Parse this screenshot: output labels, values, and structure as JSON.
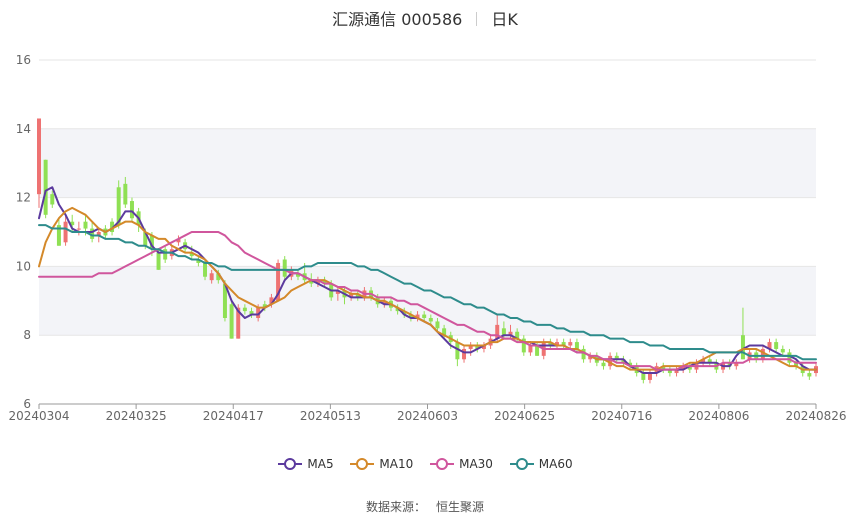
{
  "header": {
    "stock_name": "汇源通信 000586",
    "period": "日K"
  },
  "source": {
    "label": "数据来源：",
    "provider": "恒生聚源"
  },
  "legend": [
    {
      "name": "MA5",
      "color": "#5b3a9e"
    },
    {
      "name": "MA10",
      "color": "#d4892a"
    },
    {
      "name": "MA30",
      "color": "#d0569d"
    },
    {
      "name": "MA60",
      "color": "#2e8c8c"
    }
  ],
  "colors": {
    "up": "#ee7272",
    "down": "#8fe054",
    "grid": "#e6e6e6",
    "band": "#f3f4f8"
  },
  "chart_data": {
    "type": "candlestick",
    "title": "汇源通信 000586 日K",
    "x_tick_labels": [
      "20240304",
      "20240325",
      "20240417",
      "20240513",
      "20240603",
      "20240625",
      "20240716",
      "20240806",
      "20240826"
    ],
    "y_ticks": [
      6,
      8,
      10,
      12,
      14,
      16
    ],
    "ylim": [
      6,
      16
    ],
    "grid": true,
    "candles": [
      [
        12.1,
        14.3,
        14.3,
        11.7
      ],
      [
        13.1,
        11.5,
        13.1,
        11.4
      ],
      [
        12.1,
        11.8,
        12.2,
        11.7
      ],
      [
        11.2,
        10.6,
        11.4,
        10.6
      ],
      [
        10.7,
        11.3,
        11.5,
        10.6
      ],
      [
        11.3,
        11.2,
        11.5,
        11.0
      ],
      [
        11.1,
        11.1,
        11.3,
        10.9
      ],
      [
        11.3,
        11.1,
        11.5,
        10.9
      ],
      [
        11.1,
        10.8,
        11.3,
        10.7
      ],
      [
        10.9,
        11.0,
        11.1,
        10.7
      ],
      [
        11.1,
        10.9,
        11.2,
        10.8
      ],
      [
        11.3,
        11.0,
        11.4,
        10.9
      ],
      [
        12.3,
        11.2,
        12.5,
        11.1
      ],
      [
        12.4,
        11.8,
        12.6,
        11.7
      ],
      [
        11.9,
        11.4,
        12.0,
        11.3
      ],
      [
        11.6,
        11.2,
        11.7,
        11.0
      ],
      [
        11.0,
        10.6,
        11.1,
        10.5
      ],
      [
        10.9,
        10.5,
        11.0,
        10.3
      ],
      [
        10.4,
        9.9,
        10.5,
        9.9
      ],
      [
        10.5,
        10.2,
        10.6,
        10.1
      ],
      [
        10.3,
        10.5,
        10.6,
        10.2
      ],
      [
        10.7,
        10.8,
        10.9,
        10.6
      ],
      [
        10.7,
        10.5,
        10.8,
        10.4
      ],
      [
        10.4,
        10.3,
        10.6,
        10.2
      ],
      [
        10.2,
        10.1,
        10.3,
        10.0
      ],
      [
        10.1,
        9.7,
        10.2,
        9.6
      ],
      [
        9.6,
        9.8,
        9.9,
        9.5
      ],
      [
        9.8,
        9.6,
        9.9,
        9.5
      ],
      [
        9.5,
        8.5,
        9.6,
        8.4
      ],
      [
        8.9,
        7.9,
        9.0,
        7.9
      ],
      [
        7.9,
        8.8,
        8.9,
        7.9
      ],
      [
        8.8,
        8.7,
        8.9,
        8.6
      ],
      [
        8.7,
        8.6,
        8.8,
        8.5
      ],
      [
        8.5,
        8.8,
        8.9,
        8.4
      ],
      [
        8.9,
        8.8,
        9.0,
        8.7
      ],
      [
        8.9,
        9.1,
        9.2,
        8.8
      ],
      [
        9.0,
        10.1,
        10.2,
        9.0
      ],
      [
        10.2,
        9.7,
        10.3,
        9.6
      ],
      [
        9.7,
        9.9,
        10.0,
        9.6
      ],
      [
        9.8,
        9.7,
        9.9,
        9.6
      ],
      [
        9.8,
        9.6,
        10.1,
        9.5
      ],
      [
        9.6,
        9.5,
        9.8,
        9.4
      ],
      [
        9.5,
        9.6,
        9.7,
        9.4
      ],
      [
        9.6,
        9.5,
        9.7,
        9.4
      ],
      [
        9.5,
        9.1,
        9.6,
        9.0
      ],
      [
        9.2,
        9.3,
        9.4,
        9.0
      ],
      [
        9.3,
        9.1,
        9.4,
        8.9
      ],
      [
        9.1,
        9.2,
        9.3,
        9.0
      ],
      [
        9.2,
        9.1,
        9.3,
        9.0
      ],
      [
        9.1,
        9.3,
        9.4,
        9.0
      ],
      [
        9.3,
        9.1,
        9.4,
        9.0
      ],
      [
        9.1,
        8.9,
        9.2,
        8.8
      ],
      [
        8.9,
        9.0,
        9.1,
        8.8
      ],
      [
        9.0,
        8.8,
        9.1,
        8.7
      ],
      [
        8.8,
        8.7,
        8.9,
        8.6
      ],
      [
        8.7,
        8.6,
        8.8,
        8.5
      ],
      [
        8.6,
        8.5,
        8.7,
        8.4
      ],
      [
        8.5,
        8.6,
        8.7,
        8.4
      ],
      [
        8.6,
        8.5,
        8.7,
        8.4
      ],
      [
        8.5,
        8.4,
        8.6,
        8.3
      ],
      [
        8.4,
        8.2,
        8.5,
        8.1
      ],
      [
        8.2,
        8.0,
        8.3,
        7.9
      ],
      [
        8.0,
        7.8,
        8.1,
        7.6
      ],
      [
        7.8,
        7.3,
        7.9,
        7.1
      ],
      [
        7.3,
        7.6,
        7.7,
        7.2
      ],
      [
        7.6,
        7.7,
        7.8,
        7.4
      ],
      [
        7.7,
        7.6,
        7.8,
        7.5
      ],
      [
        7.6,
        7.7,
        7.8,
        7.5
      ],
      [
        7.7,
        7.9,
        8.0,
        7.6
      ],
      [
        7.9,
        8.3,
        8.6,
        7.8
      ],
      [
        8.2,
        8.0,
        8.4,
        7.9
      ],
      [
        8.0,
        8.1,
        8.3,
        7.9
      ],
      [
        8.1,
        7.9,
        8.2,
        7.8
      ],
      [
        7.9,
        7.5,
        8.0,
        7.4
      ],
      [
        7.5,
        7.7,
        7.8,
        7.4
      ],
      [
        7.7,
        7.4,
        7.8,
        7.4
      ],
      [
        7.4,
        7.8,
        7.9,
        7.3
      ],
      [
        7.8,
        7.7,
        7.9,
        7.6
      ],
      [
        7.7,
        7.8,
        7.9,
        7.6
      ],
      [
        7.8,
        7.7,
        7.9,
        7.6
      ],
      [
        7.7,
        7.8,
        7.9,
        7.6
      ],
      [
        7.8,
        7.6,
        7.9,
        7.5
      ],
      [
        7.6,
        7.3,
        7.7,
        7.2
      ],
      [
        7.3,
        7.4,
        7.5,
        7.2
      ],
      [
        7.4,
        7.2,
        7.5,
        7.1
      ],
      [
        7.2,
        7.1,
        7.3,
        7.0
      ],
      [
        7.1,
        7.4,
        7.5,
        7.0
      ],
      [
        7.4,
        7.3,
        7.5,
        7.2
      ],
      [
        7.3,
        7.2,
        7.4,
        7.1
      ],
      [
        7.2,
        7.1,
        7.3,
        7.0
      ],
      [
        7.1,
        6.9,
        7.2,
        6.8
      ],
      [
        6.9,
        6.7,
        7.0,
        6.6
      ],
      [
        6.7,
        6.9,
        7.0,
        6.6
      ],
      [
        6.9,
        7.1,
        7.2,
        6.8
      ],
      [
        7.1,
        7.0,
        7.2,
        6.9
      ],
      [
        7.0,
        6.9,
        7.1,
        6.8
      ],
      [
        6.9,
        7.0,
        7.1,
        6.8
      ],
      [
        7.0,
        7.1,
        7.2,
        6.9
      ],
      [
        7.1,
        7.0,
        7.2,
        6.9
      ],
      [
        7.0,
        7.2,
        7.3,
        6.9
      ],
      [
        7.2,
        7.3,
        7.4,
        7.1
      ],
      [
        7.3,
        7.2,
        7.4,
        7.1
      ],
      [
        7.2,
        7.0,
        7.3,
        6.9
      ],
      [
        7.0,
        7.2,
        7.3,
        6.9
      ],
      [
        7.2,
        7.1,
        7.3,
        7.0
      ],
      [
        7.1,
        7.2,
        7.3,
        7.0
      ],
      [
        8.0,
        7.3,
        8.8,
        7.3
      ],
      [
        7.3,
        7.5,
        7.6,
        7.2
      ],
      [
        7.5,
        7.3,
        7.6,
        7.2
      ],
      [
        7.3,
        7.6,
        7.7,
        7.2
      ],
      [
        7.6,
        7.8,
        7.9,
        7.5
      ],
      [
        7.8,
        7.6,
        7.9,
        7.5
      ],
      [
        7.6,
        7.5,
        7.7,
        7.4
      ],
      [
        7.5,
        7.2,
        7.6,
        7.1
      ],
      [
        7.2,
        7.1,
        7.3,
        7.0
      ],
      [
        7.1,
        6.9,
        7.2,
        6.8
      ],
      [
        6.9,
        6.8,
        7.0,
        6.7
      ],
      [
        6.9,
        7.1,
        7.2,
        6.8
      ]
    ],
    "ma5": [
      11.4,
      12.2,
      12.3,
      11.8,
      11.5,
      11.1,
      11.0,
      11.0,
      11.0,
      11.1,
      11.0,
      11.1,
      11.3,
      11.6,
      11.6,
      11.4,
      11.0,
      10.6,
      10.4,
      10.4,
      10.4,
      10.5,
      10.6,
      10.5,
      10.4,
      10.2,
      10.0,
      9.8,
      9.5,
      9.0,
      8.7,
      8.5,
      8.6,
      8.6,
      8.8,
      8.9,
      9.2,
      9.6,
      9.8,
      9.8,
      9.7,
      9.6,
      9.5,
      9.4,
      9.3,
      9.3,
      9.2,
      9.1,
      9.1,
      9.1,
      9.1,
      9.0,
      8.9,
      8.9,
      8.8,
      8.6,
      8.5,
      8.5,
      8.4,
      8.3,
      8.1,
      7.9,
      7.7,
      7.6,
      7.5,
      7.5,
      7.6,
      7.7,
      7.8,
      7.9,
      8.0,
      8.0,
      7.9,
      7.8,
      7.8,
      7.7,
      7.7,
      7.7,
      7.7,
      7.7,
      7.6,
      7.5,
      7.5,
      7.4,
      7.3,
      7.3,
      7.3,
      7.3,
      7.3,
      7.1,
      7.0,
      6.9,
      6.9,
      6.9,
      7.0,
      7.0,
      7.0,
      7.0,
      7.1,
      7.2,
      7.2,
      7.2,
      7.2,
      7.1,
      7.1,
      7.4,
      7.6,
      7.7,
      7.7,
      7.7,
      7.6,
      7.5,
      7.4,
      7.4,
      7.3,
      7.1,
      7.0,
      7.0
    ],
    "ma10": [
      10.0,
      10.7,
      11.1,
      11.4,
      11.6,
      11.7,
      11.6,
      11.5,
      11.3,
      11.1,
      11.0,
      11.1,
      11.2,
      11.3,
      11.3,
      11.2,
      11.0,
      10.9,
      10.8,
      10.8,
      10.6,
      10.5,
      10.4,
      10.4,
      10.3,
      10.2,
      10.0,
      9.8,
      9.5,
      9.3,
      9.1,
      9.0,
      8.9,
      8.8,
      8.8,
      8.9,
      9.0,
      9.1,
      9.3,
      9.4,
      9.5,
      9.6,
      9.6,
      9.6,
      9.5,
      9.4,
      9.3,
      9.2,
      9.2,
      9.1,
      9.1,
      9.0,
      9.0,
      8.9,
      8.8,
      8.7,
      8.6,
      8.5,
      8.4,
      8.3,
      8.1,
      8.0,
      7.9,
      7.8,
      7.7,
      7.7,
      7.7,
      7.7,
      7.8,
      7.8,
      7.9,
      7.9,
      7.9,
      7.8,
      7.8,
      7.8,
      7.8,
      7.8,
      7.7,
      7.7,
      7.6,
      7.6,
      7.5,
      7.4,
      7.3,
      7.3,
      7.2,
      7.1,
      7.1,
      7.0,
      7.0,
      7.0,
      7.0,
      7.0,
      7.1,
      7.1,
      7.1,
      7.1,
      7.2,
      7.2,
      7.3,
      7.4,
      7.5,
      7.5,
      7.5,
      7.5,
      7.6,
      7.6,
      7.6,
      7.5,
      7.4,
      7.3,
      7.2,
      7.1,
      7.1,
      7.0,
      7.0,
      7.0
    ],
    "ma30": [
      9.7,
      9.7,
      9.7,
      9.7,
      9.7,
      9.7,
      9.7,
      9.7,
      9.7,
      9.8,
      9.8,
      9.8,
      9.9,
      10.0,
      10.1,
      10.2,
      10.3,
      10.4,
      10.5,
      10.6,
      10.7,
      10.8,
      10.9,
      11.0,
      11.0,
      11.0,
      11.0,
      11.0,
      10.9,
      10.7,
      10.6,
      10.4,
      10.3,
      10.2,
      10.1,
      10.0,
      9.9,
      9.9,
      9.8,
      9.8,
      9.7,
      9.6,
      9.6,
      9.5,
      9.5,
      9.4,
      9.4,
      9.3,
      9.3,
      9.2,
      9.2,
      9.1,
      9.1,
      9.1,
      9.0,
      9.0,
      8.9,
      8.9,
      8.8,
      8.7,
      8.6,
      8.5,
      8.4,
      8.3,
      8.3,
      8.2,
      8.1,
      8.1,
      8.0,
      8.0,
      7.9,
      7.9,
      7.8,
      7.8,
      7.7,
      7.7,
      7.6,
      7.6,
      7.6,
      7.6,
      7.6,
      7.5,
      7.5,
      7.4,
      7.4,
      7.3,
      7.3,
      7.2,
      7.2,
      7.1,
      7.1,
      7.1,
      7.1,
      7.0,
      7.0,
      7.0,
      7.0,
      7.1,
      7.1,
      7.1,
      7.1,
      7.1,
      7.1,
      7.2,
      7.2,
      7.2,
      7.2,
      7.3,
      7.3,
      7.3,
      7.3,
      7.3,
      7.3,
      7.3,
      7.2,
      7.2,
      7.2,
      7.2
    ],
    "ma60": [
      11.2,
      11.2,
      11.1,
      11.1,
      11.1,
      11.0,
      11.0,
      11.0,
      10.9,
      10.9,
      10.8,
      10.8,
      10.8,
      10.7,
      10.7,
      10.6,
      10.6,
      10.5,
      10.5,
      10.4,
      10.4,
      10.3,
      10.3,
      10.2,
      10.2,
      10.1,
      10.1,
      10.0,
      10.0,
      9.9,
      9.9,
      9.9,
      9.9,
      9.9,
      9.9,
      9.9,
      9.9,
      9.9,
      9.9,
      9.9,
      10.0,
      10.0,
      10.1,
      10.1,
      10.1,
      10.1,
      10.1,
      10.1,
      10.0,
      10.0,
      9.9,
      9.9,
      9.8,
      9.7,
      9.6,
      9.5,
      9.5,
      9.4,
      9.3,
      9.3,
      9.2,
      9.1,
      9.1,
      9.0,
      8.9,
      8.9,
      8.8,
      8.8,
      8.7,
      8.6,
      8.6,
      8.5,
      8.5,
      8.4,
      8.4,
      8.3,
      8.3,
      8.3,
      8.2,
      8.2,
      8.1,
      8.1,
      8.1,
      8.0,
      8.0,
      8.0,
      7.9,
      7.9,
      7.9,
      7.8,
      7.8,
      7.8,
      7.7,
      7.7,
      7.7,
      7.6,
      7.6,
      7.6,
      7.6,
      7.6,
      7.6,
      7.5,
      7.5,
      7.5,
      7.5,
      7.5,
      7.5,
      7.4,
      7.4,
      7.4,
      7.4,
      7.4,
      7.4,
      7.4,
      7.4,
      7.3,
      7.3,
      7.3
    ]
  }
}
